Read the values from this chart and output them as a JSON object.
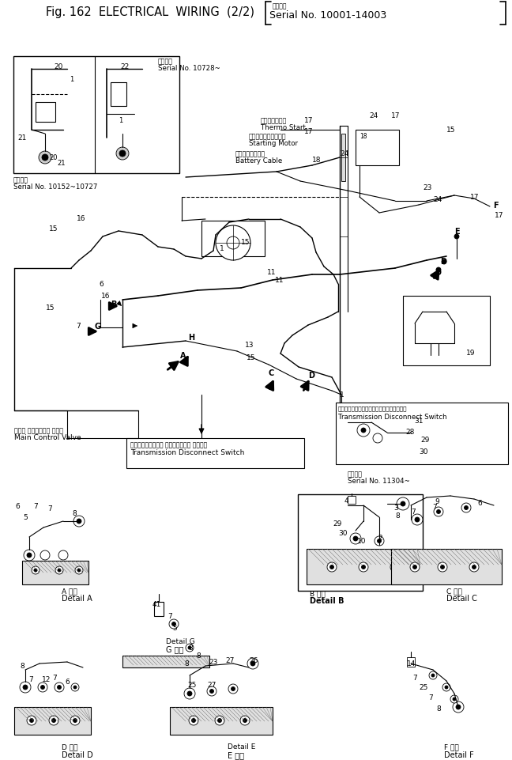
{
  "bg_color": "#ffffff",
  "title": "Fig. 162  ELECTRICAL  WIRING  (2/2)",
  "serial_bracket": "Serial No. 10001-14003",
  "serial_small_jp": "適用号機",
  "serial_10728_jp": "適用号機",
  "serial_10728": "Serial No. 10728~",
  "serial_10152_jp": "適用号機",
  "serial_10152": "Serial No. 10152~10727",
  "serial_11304_jp": "適用号機",
  "serial_11304": "Serial No. 11304~",
  "thermo_jp": "サーモスタート",
  "thermo_en": "Thermo Start",
  "starting_jp": "スターティングモータ",
  "starting_en": "Starting Motor",
  "battery_jp": "バッテリケーブル",
  "battery_en": "Battery Cable",
  "mcv_jp": "メイン コントロール バルブ",
  "mcv_en": "Main Control Valve",
  "tds_jp": "トランスミッション ディスコネクト スイッチ",
  "tds_en": "Transmission Disconnect Switch",
  "tds2_jp": "トランスミッションディスコネクトスイッチ",
  "tds2_en": "Transmission Disconnect Switch",
  "detail_a_jp": "A 詳細",
  "detail_a_en": "Detail A",
  "detail_b_jp": "B 詳細",
  "detail_b_en": "Detail B",
  "detail_c_jp": "C 詳細",
  "detail_c_en": "Detail C",
  "detail_d_jp": "D 詳細",
  "detail_d_en": "Detail D",
  "detail_e_jp": "Detail E",
  "detail_e_jp2": "E 詳細",
  "detail_f_jp": "F 詳細",
  "detail_f_en": "Detail F",
  "detail_g_jp": "Detail G",
  "detail_g_jp2": "G 詳細"
}
